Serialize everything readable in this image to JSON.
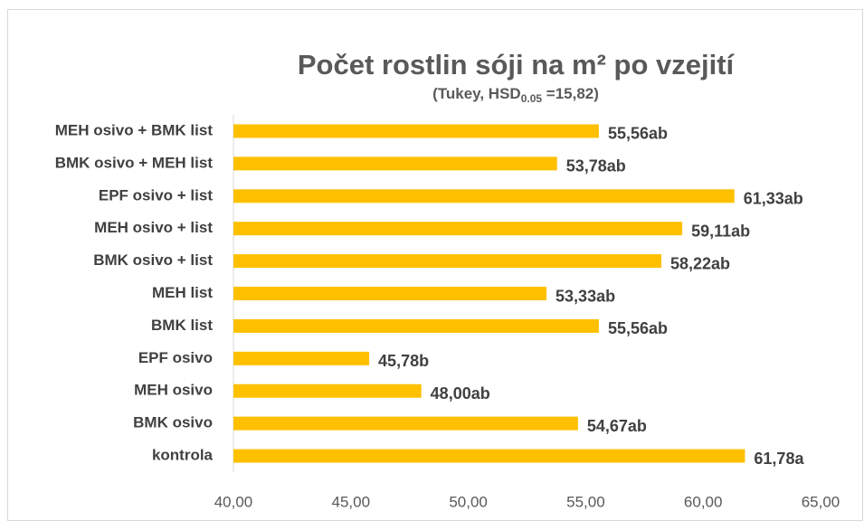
{
  "chart_data": {
    "type": "bar",
    "orientation": "horizontal",
    "title": "Počet rostlin sóji na m² po vzejití",
    "subtitle": {
      "text": "(Tukey, HSD",
      "subscript": "0.05",
      "after": " =15,82)"
    },
    "categories": [
      "MEH osivo + BMK list",
      "BMK osivo + MEH list",
      "EPF osivo + list",
      "MEH osivo + list",
      "BMK osivo + list",
      "MEH list",
      "BMK list",
      "EPF osivo",
      "MEH osivo",
      "BMK osivo",
      "kontrola"
    ],
    "values": [
      55.56,
      53.78,
      61.33,
      59.11,
      58.22,
      53.33,
      55.56,
      45.78,
      48.0,
      54.67,
      61.78
    ],
    "value_labels": [
      "55,56ab",
      "53,78ab",
      "61,33ab",
      "59,11ab",
      "58,22ab",
      "53,33ab",
      "55,56ab",
      "45,78b",
      "48,00ab",
      "54,67ab",
      "61,78a"
    ],
    "color": "#ffc000",
    "xlim": [
      40,
      65
    ],
    "xticks": [
      {
        "value": 40,
        "label": "40,00"
      },
      {
        "value": 45,
        "label": "45,00"
      },
      {
        "value": 50,
        "label": "50,00"
      },
      {
        "value": 55,
        "label": "55,00"
      },
      {
        "value": 60,
        "label": "60,00"
      },
      {
        "value": 65,
        "label": "65,00"
      }
    ],
    "grid": false
  }
}
